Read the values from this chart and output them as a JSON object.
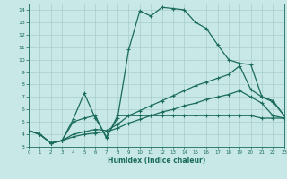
{
  "xlabel": "Humidex (Indice chaleur)",
  "xlim": [
    0,
    23
  ],
  "ylim": [
    3,
    14.5
  ],
  "xticks": [
    0,
    1,
    2,
    3,
    4,
    5,
    6,
    7,
    8,
    9,
    10,
    11,
    12,
    13,
    14,
    15,
    16,
    17,
    18,
    19,
    20,
    21,
    22,
    23
  ],
  "yticks": [
    3,
    4,
    5,
    6,
    7,
    8,
    9,
    10,
    11,
    12,
    13,
    14
  ],
  "bg_color": "#c8e8e8",
  "grid_color": "#a8cccc",
  "line_color": "#1a6b5a",
  "curves": [
    {
      "x": [
        0,
        1,
        2,
        3,
        4,
        5,
        6,
        7,
        8,
        9,
        10,
        11,
        12,
        13,
        14,
        15,
        16,
        17,
        18,
        19,
        20,
        21,
        22,
        23
      ],
      "y": [
        4.3,
        4.0,
        3.3,
        3.5,
        5.2,
        7.3,
        5.3,
        3.8,
        5.3,
        10.8,
        13.9,
        13.5,
        14.2,
        14.1,
        14.0,
        13.0,
        12.5,
        11.2,
        10.0,
        9.7,
        9.6,
        7.0,
        6.6,
        5.5
      ]
    },
    {
      "x": [
        0,
        1,
        2,
        3,
        4,
        5,
        6,
        7,
        8,
        9,
        10,
        11,
        12,
        13,
        14,
        15,
        16,
        17,
        18,
        19,
        20,
        21,
        22,
        23
      ],
      "y": [
        4.3,
        4.0,
        3.3,
        3.5,
        5.0,
        5.3,
        5.5,
        3.7,
        5.5,
        5.5,
        5.5,
        5.5,
        5.5,
        5.5,
        5.5,
        5.5,
        5.5,
        5.5,
        5.5,
        5.5,
        5.5,
        5.3,
        5.3,
        5.3
      ]
    },
    {
      "x": [
        0,
        1,
        2,
        3,
        4,
        5,
        6,
        7,
        8,
        9,
        10,
        11,
        12,
        13,
        14,
        15,
        16,
        17,
        18,
        19,
        20,
        21,
        22,
        23
      ],
      "y": [
        4.3,
        4.0,
        3.3,
        3.5,
        4.0,
        4.2,
        4.4,
        4.3,
        4.8,
        5.5,
        5.9,
        6.3,
        6.7,
        7.1,
        7.5,
        7.9,
        8.2,
        8.5,
        8.8,
        9.5,
        7.6,
        7.0,
        6.7,
        5.5
      ]
    },
    {
      "x": [
        0,
        1,
        2,
        3,
        4,
        5,
        6,
        7,
        8,
        9,
        10,
        11,
        12,
        13,
        14,
        15,
        16,
        17,
        18,
        19,
        20,
        21,
        22,
        23
      ],
      "y": [
        4.3,
        4.0,
        3.3,
        3.5,
        3.8,
        4.0,
        4.1,
        4.2,
        4.5,
        4.9,
        5.2,
        5.5,
        5.8,
        6.0,
        6.3,
        6.5,
        6.8,
        7.0,
        7.2,
        7.5,
        7.0,
        6.5,
        5.5,
        5.3
      ]
    }
  ]
}
